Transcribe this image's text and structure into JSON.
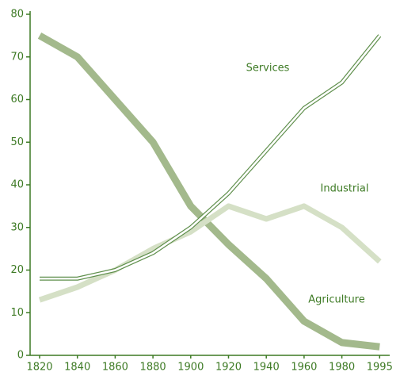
{
  "chart_data": {
    "type": "line",
    "categories": [
      "1820",
      "1840",
      "1860",
      "1880",
      "1900",
      "1920",
      "1940",
      "1960",
      "1980",
      "1995"
    ],
    "series": [
      {
        "name": "Agriculture",
        "color": "#a3b98c",
        "values": [
          75,
          70,
          60,
          50,
          35,
          26,
          18,
          8,
          3,
          2
        ]
      },
      {
        "name": "Industrial",
        "color": "#d5e0c6",
        "values": [
          13,
          16,
          20,
          25,
          29,
          35,
          32,
          35,
          30,
          22
        ]
      },
      {
        "name": "Services",
        "color": "#5f8f4c",
        "values": [
          18,
          18,
          20,
          24,
          30,
          38,
          48,
          58,
          64,
          75
        ]
      }
    ],
    "ylim": [
      0,
      80
    ],
    "yticks": [
      0,
      10,
      20,
      30,
      40,
      50,
      60,
      70,
      80
    ]
  }
}
